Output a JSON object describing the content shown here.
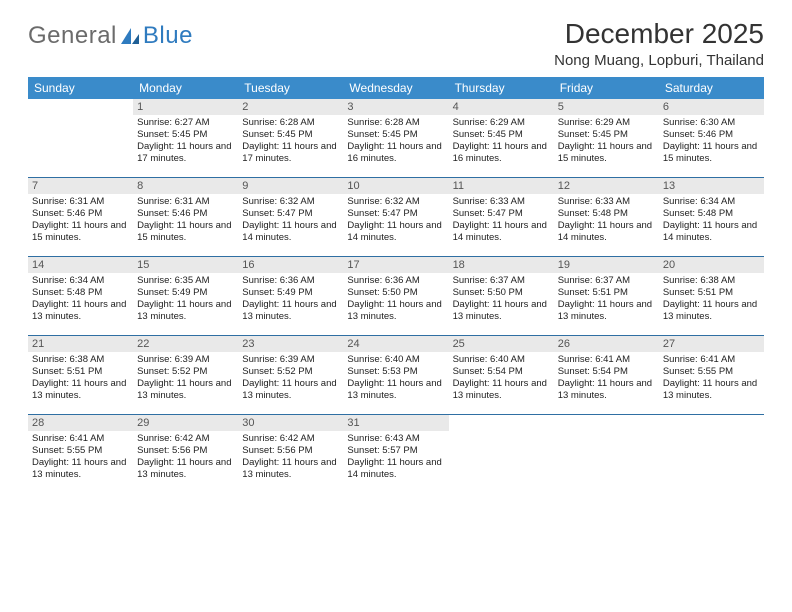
{
  "brand": {
    "part1": "General",
    "part2": "Blue"
  },
  "header": {
    "title": "December 2025",
    "location": "Nong Muang, Lopburi, Thailand"
  },
  "colors": {
    "header_bg": "#3a8bca",
    "header_text": "#ffffff",
    "daynum_bg": "#e9e9e9",
    "week_border": "#2f6fa3",
    "brand_gray": "#6b6b6b",
    "brand_blue": "#2f7bbf"
  },
  "dayNames": [
    "Sunday",
    "Monday",
    "Tuesday",
    "Wednesday",
    "Thursday",
    "Friday",
    "Saturday"
  ],
  "weeks": [
    [
      {
        "n": "",
        "lines": []
      },
      {
        "n": "1",
        "lines": [
          "Sunrise: 6:27 AM",
          "Sunset: 5:45 PM",
          "Daylight: 11 hours and 17 minutes."
        ]
      },
      {
        "n": "2",
        "lines": [
          "Sunrise: 6:28 AM",
          "Sunset: 5:45 PM",
          "Daylight: 11 hours and 17 minutes."
        ]
      },
      {
        "n": "3",
        "lines": [
          "Sunrise: 6:28 AM",
          "Sunset: 5:45 PM",
          "Daylight: 11 hours and 16 minutes."
        ]
      },
      {
        "n": "4",
        "lines": [
          "Sunrise: 6:29 AM",
          "Sunset: 5:45 PM",
          "Daylight: 11 hours and 16 minutes."
        ]
      },
      {
        "n": "5",
        "lines": [
          "Sunrise: 6:29 AM",
          "Sunset: 5:45 PM",
          "Daylight: 11 hours and 15 minutes."
        ]
      },
      {
        "n": "6",
        "lines": [
          "Sunrise: 6:30 AM",
          "Sunset: 5:46 PM",
          "Daylight: 11 hours and 15 minutes."
        ]
      }
    ],
    [
      {
        "n": "7",
        "lines": [
          "Sunrise: 6:31 AM",
          "Sunset: 5:46 PM",
          "Daylight: 11 hours and 15 minutes."
        ]
      },
      {
        "n": "8",
        "lines": [
          "Sunrise: 6:31 AM",
          "Sunset: 5:46 PM",
          "Daylight: 11 hours and 15 minutes."
        ]
      },
      {
        "n": "9",
        "lines": [
          "Sunrise: 6:32 AM",
          "Sunset: 5:47 PM",
          "Daylight: 11 hours and 14 minutes."
        ]
      },
      {
        "n": "10",
        "lines": [
          "Sunrise: 6:32 AM",
          "Sunset: 5:47 PM",
          "Daylight: 11 hours and 14 minutes."
        ]
      },
      {
        "n": "11",
        "lines": [
          "Sunrise: 6:33 AM",
          "Sunset: 5:47 PM",
          "Daylight: 11 hours and 14 minutes."
        ]
      },
      {
        "n": "12",
        "lines": [
          "Sunrise: 6:33 AM",
          "Sunset: 5:48 PM",
          "Daylight: 11 hours and 14 minutes."
        ]
      },
      {
        "n": "13",
        "lines": [
          "Sunrise: 6:34 AM",
          "Sunset: 5:48 PM",
          "Daylight: 11 hours and 14 minutes."
        ]
      }
    ],
    [
      {
        "n": "14",
        "lines": [
          "Sunrise: 6:34 AM",
          "Sunset: 5:48 PM",
          "Daylight: 11 hours and 13 minutes."
        ]
      },
      {
        "n": "15",
        "lines": [
          "Sunrise: 6:35 AM",
          "Sunset: 5:49 PM",
          "Daylight: 11 hours and 13 minutes."
        ]
      },
      {
        "n": "16",
        "lines": [
          "Sunrise: 6:36 AM",
          "Sunset: 5:49 PM",
          "Daylight: 11 hours and 13 minutes."
        ]
      },
      {
        "n": "17",
        "lines": [
          "Sunrise: 6:36 AM",
          "Sunset: 5:50 PM",
          "Daylight: 11 hours and 13 minutes."
        ]
      },
      {
        "n": "18",
        "lines": [
          "Sunrise: 6:37 AM",
          "Sunset: 5:50 PM",
          "Daylight: 11 hours and 13 minutes."
        ]
      },
      {
        "n": "19",
        "lines": [
          "Sunrise: 6:37 AM",
          "Sunset: 5:51 PM",
          "Daylight: 11 hours and 13 minutes."
        ]
      },
      {
        "n": "20",
        "lines": [
          "Sunrise: 6:38 AM",
          "Sunset: 5:51 PM",
          "Daylight: 11 hours and 13 minutes."
        ]
      }
    ],
    [
      {
        "n": "21",
        "lines": [
          "Sunrise: 6:38 AM",
          "Sunset: 5:51 PM",
          "Daylight: 11 hours and 13 minutes."
        ]
      },
      {
        "n": "22",
        "lines": [
          "Sunrise: 6:39 AM",
          "Sunset: 5:52 PM",
          "Daylight: 11 hours and 13 minutes."
        ]
      },
      {
        "n": "23",
        "lines": [
          "Sunrise: 6:39 AM",
          "Sunset: 5:52 PM",
          "Daylight: 11 hours and 13 minutes."
        ]
      },
      {
        "n": "24",
        "lines": [
          "Sunrise: 6:40 AM",
          "Sunset: 5:53 PM",
          "Daylight: 11 hours and 13 minutes."
        ]
      },
      {
        "n": "25",
        "lines": [
          "Sunrise: 6:40 AM",
          "Sunset: 5:54 PM",
          "Daylight: 11 hours and 13 minutes."
        ]
      },
      {
        "n": "26",
        "lines": [
          "Sunrise: 6:41 AM",
          "Sunset: 5:54 PM",
          "Daylight: 11 hours and 13 minutes."
        ]
      },
      {
        "n": "27",
        "lines": [
          "Sunrise: 6:41 AM",
          "Sunset: 5:55 PM",
          "Daylight: 11 hours and 13 minutes."
        ]
      }
    ],
    [
      {
        "n": "28",
        "lines": [
          "Sunrise: 6:41 AM",
          "Sunset: 5:55 PM",
          "Daylight: 11 hours and 13 minutes."
        ]
      },
      {
        "n": "29",
        "lines": [
          "Sunrise: 6:42 AM",
          "Sunset: 5:56 PM",
          "Daylight: 11 hours and 13 minutes."
        ]
      },
      {
        "n": "30",
        "lines": [
          "Sunrise: 6:42 AM",
          "Sunset: 5:56 PM",
          "Daylight: 11 hours and 13 minutes."
        ]
      },
      {
        "n": "31",
        "lines": [
          "Sunrise: 6:43 AM",
          "Sunset: 5:57 PM",
          "Daylight: 11 hours and 14 minutes."
        ]
      },
      {
        "n": "",
        "lines": []
      },
      {
        "n": "",
        "lines": []
      },
      {
        "n": "",
        "lines": []
      }
    ]
  ]
}
